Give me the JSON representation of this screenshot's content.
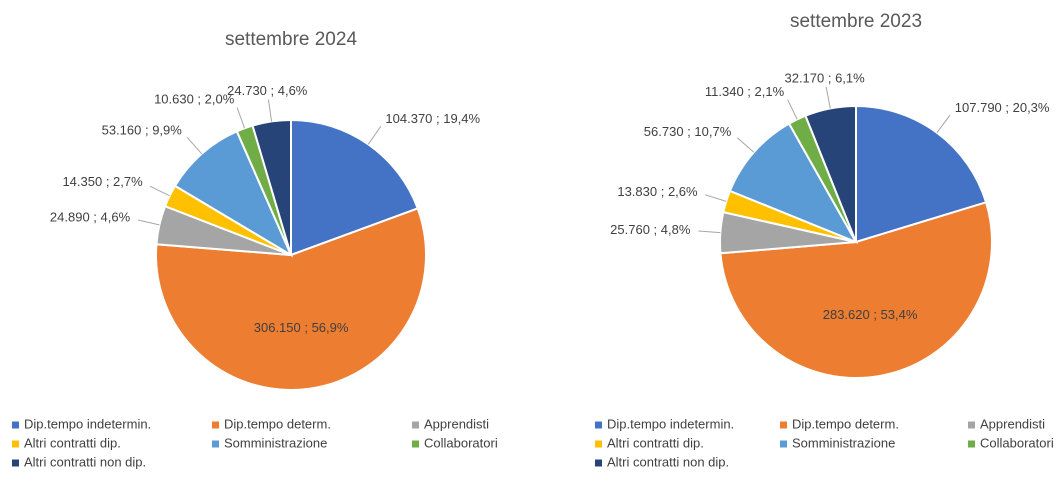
{
  "chart_data": [
    {
      "type": "pie",
      "title": "settembre 2024",
      "categories": [
        "Dip.tempo indetermin.",
        "Dip.tempo determ.",
        "Apprendisti",
        "Altri contratti dip.",
        "Somministrazione",
        "Collaboratori",
        "Altri contratti non dip."
      ],
      "values": [
        104370,
        306150,
        24890,
        14350,
        53160,
        10630,
        24730
      ],
      "value_labels": [
        "104.370 ; 19,4%",
        "306.150 ; 56,9%",
        "24.890 ; 4,6%",
        "14.350 ; 2,7%",
        "53.160 ; 9,9%",
        "10.630 ; 2,0%",
        "24.730 ; 4,6%"
      ],
      "colors": [
        "#4472c4",
        "#ed7d31",
        "#a5a5a5",
        "#ffc000",
        "#5b9bd5",
        "#70ad47",
        "#264478"
      ]
    },
    {
      "type": "pie",
      "title": "settembre 2023",
      "categories": [
        "Dip.tempo indetermin.",
        "Dip.tempo determ.",
        "Apprendisti",
        "Altri contratti dip.",
        "Somministrazione",
        "Collaboratori",
        "Altri contratti non dip."
      ],
      "values": [
        107790,
        283620,
        25760,
        13830,
        56730,
        11340,
        32170
      ],
      "value_labels": [
        "107.790 ; 20,3%",
        "283.620 ; 53,4%",
        "25.760 ; 4,8%",
        "13.830 ; 2,6%",
        "56.730 ; 10,7%",
        "11.340 ; 2,1%",
        "32.170 ; 6,1%"
      ],
      "colors": [
        "#4472c4",
        "#ed7d31",
        "#a5a5a5",
        "#ffc000",
        "#5b9bd5",
        "#70ad47",
        "#264478"
      ]
    }
  ]
}
